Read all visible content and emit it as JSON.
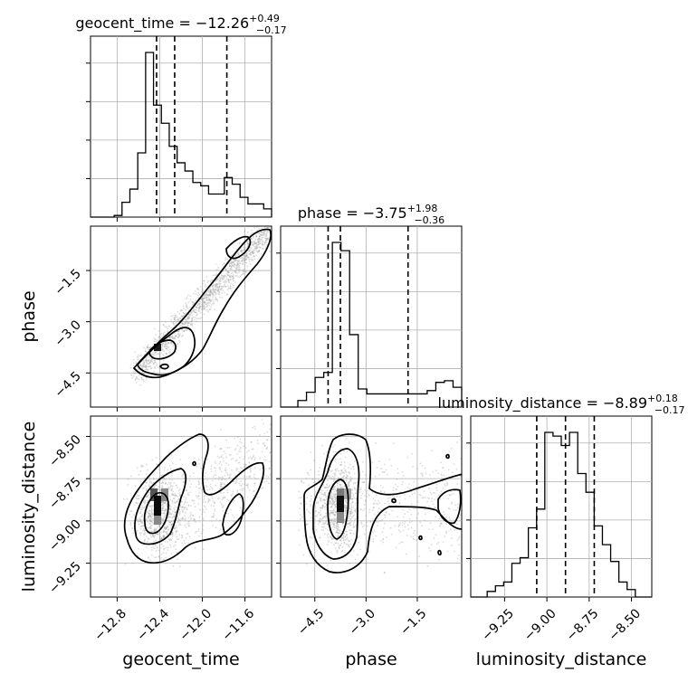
{
  "chart_data": {
    "type": "corner",
    "parameters": [
      "geocent_time",
      "phase",
      "luminosity_distance"
    ],
    "labels": {
      "geocent_time": "geocent_time",
      "phase": "phase",
      "luminosity_distance": "luminosity_distance"
    },
    "ranges": {
      "geocent_time": [
        -13.05,
        -11.35
      ],
      "phase": [
        -5.5,
        -0.2
      ],
      "luminosity_distance": [
        -9.45,
        -8.38
      ]
    },
    "ticks": {
      "geocent_time": [
        -12.8,
        -12.4,
        -12.0,
        -11.6
      ],
      "phase": [
        -4.5,
        -3.0,
        -1.5
      ],
      "luminosity_distance": [
        -9.25,
        -9.0,
        -8.75,
        -8.5
      ]
    },
    "tick_labels": {
      "geocent_time": [
        "−12.8",
        "−12.4",
        "−12.0",
        "−11.6"
      ],
      "phase": [
        "−4.5",
        "−3.0",
        "−1.5"
      ],
      "luminosity_distance": [
        "−9.25",
        "−9.00",
        "−8.75",
        "−8.50"
      ]
    },
    "titles": [
      {
        "param": "geocent_time",
        "prefix": "geocent_time = −12.26",
        "plus": "+0.49",
        "minus": "−0.17"
      },
      {
        "param": "phase",
        "prefix": "phase = −3.75",
        "plus": "+1.98",
        "minus": "−0.36"
      },
      {
        "param": "luminosity_distance",
        "prefix": "luminosity_distance = −8.89",
        "plus": "+0.18",
        "minus": "−0.17"
      }
    ],
    "quantiles": {
      "geocent_time": [
        -12.43,
        -12.26,
        -11.77
      ],
      "phase": [
        -4.11,
        -3.75,
        -1.77
      ],
      "luminosity_distance": [
        -9.06,
        -8.89,
        -8.72
      ]
    },
    "histograms": {
      "geocent_time": [
        0,
        0,
        0,
        1,
        9,
        17,
        39,
        100,
        68,
        57,
        43,
        33,
        28,
        21,
        19,
        14,
        14,
        24,
        20,
        12,
        8,
        8,
        5
      ],
      "phase": [
        0,
        0,
        4,
        9,
        18,
        21,
        100,
        95,
        44,
        11,
        8,
        8,
        8,
        8,
        8,
        8,
        8,
        10,
        15,
        16,
        12
      ],
      "luminosity_distance": [
        0,
        0,
        3,
        6,
        8,
        18,
        21,
        37,
        47,
        88,
        86,
        81,
        88,
        66,
        56,
        38,
        28,
        19,
        8,
        4,
        0,
        0
      ]
    },
    "grid": true,
    "layout": "lower-triangle"
  }
}
